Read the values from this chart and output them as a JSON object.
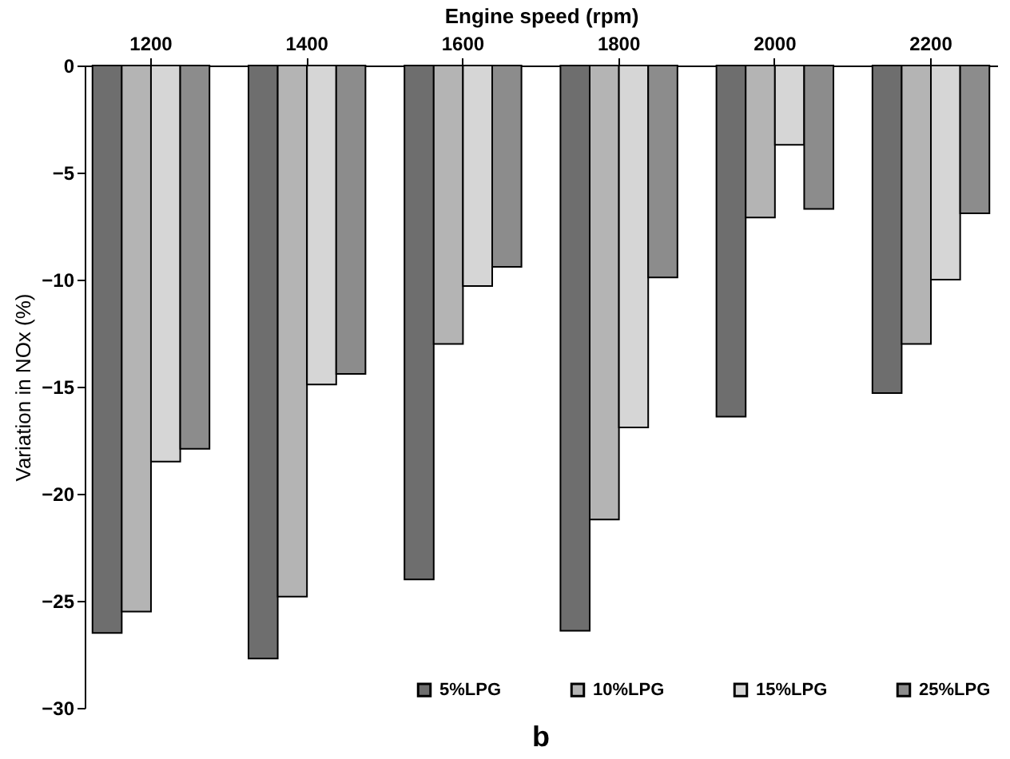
{
  "chart_data": {
    "type": "bar",
    "xlabel": "Engine speed (rpm)",
    "ylabel": "Variation in NOx (%)",
    "categories": [
      "1200",
      "1400",
      "1600",
      "1800",
      "2000",
      "2200"
    ],
    "series": [
      {
        "name": "5%LPG",
        "color": "#6e6e6e",
        "values": [
          -26.5,
          -27.7,
          -24.0,
          -26.4,
          -16.4,
          -15.3
        ]
      },
      {
        "name": "10%LPG",
        "color": "#b4b4b4",
        "values": [
          -25.5,
          -24.8,
          -13.0,
          -21.2,
          -7.1,
          -13.0
        ]
      },
      {
        "name": "15%LPG",
        "color": "#d6d6d6",
        "values": [
          -18.5,
          -14.9,
          -10.3,
          -16.9,
          -3.7,
          -10.0
        ]
      },
      {
        "name": "25%LPG",
        "color": "#8c8c8c",
        "values": [
          -17.9,
          -14.4,
          -9.4,
          -9.9,
          -6.7,
          -6.9
        ]
      }
    ],
    "ylim": [
      -30,
      0
    ],
    "yticks": [
      -30,
      -25,
      -20,
      -15,
      -10,
      -5,
      0
    ],
    "grid": false,
    "legend": "bottom right",
    "annotations": [
      "b"
    ]
  }
}
